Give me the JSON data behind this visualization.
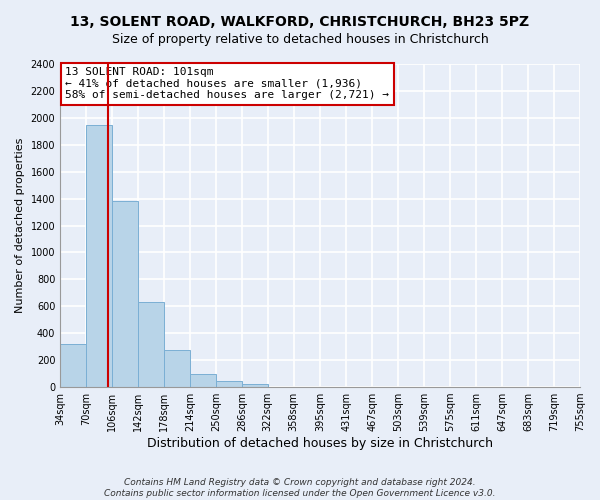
{
  "title1": "13, SOLENT ROAD, WALKFORD, CHRISTCHURCH, BH23 5PZ",
  "title2": "Size of property relative to detached houses in Christchurch",
  "xlabel": "Distribution of detached houses by size in Christchurch",
  "ylabel": "Number of detached properties",
  "bar_edges": [
    34,
    70,
    106,
    142,
    178,
    214,
    250,
    286,
    322,
    358,
    395,
    431,
    467,
    503,
    539,
    575,
    611,
    647,
    683,
    719,
    755
  ],
  "bar_heights": [
    320,
    1950,
    1380,
    630,
    275,
    95,
    42,
    20,
    0,
    0,
    0,
    0,
    0,
    0,
    0,
    0,
    0,
    0,
    0,
    0
  ],
  "bar_color": "#b8d4e8",
  "bar_edgecolor": "#7bafd4",
  "property_line_x": 101,
  "property_line_color": "#cc0000",
  "annotation_line1": "13 SOLENT ROAD: 101sqm",
  "annotation_line2": "← 41% of detached houses are smaller (1,936)",
  "annotation_line3": "58% of semi-detached houses are larger (2,721) →",
  "annotation_box_color": "#ffffff",
  "annotation_box_edgecolor": "#cc0000",
  "ylim": [
    0,
    2400
  ],
  "yticks": [
    0,
    200,
    400,
    600,
    800,
    1000,
    1200,
    1400,
    1600,
    1800,
    2000,
    2200,
    2400
  ],
  "xtick_labels": [
    "34sqm",
    "70sqm",
    "106sqm",
    "142sqm",
    "178sqm",
    "214sqm",
    "250sqm",
    "286sqm",
    "322sqm",
    "358sqm",
    "395sqm",
    "431sqm",
    "467sqm",
    "503sqm",
    "539sqm",
    "575sqm",
    "611sqm",
    "647sqm",
    "683sqm",
    "719sqm",
    "755sqm"
  ],
  "footnote": "Contains HM Land Registry data © Crown copyright and database right 2024.\nContains public sector information licensed under the Open Government Licence v3.0.",
  "background_color": "#e8eef8",
  "grid_color": "#ffffff",
  "title_fontsize": 10,
  "subtitle_fontsize": 9,
  "xlabel_fontsize": 9,
  "ylabel_fontsize": 8,
  "tick_fontsize": 7,
  "annotation_fontsize": 8,
  "footnote_fontsize": 6.5
}
